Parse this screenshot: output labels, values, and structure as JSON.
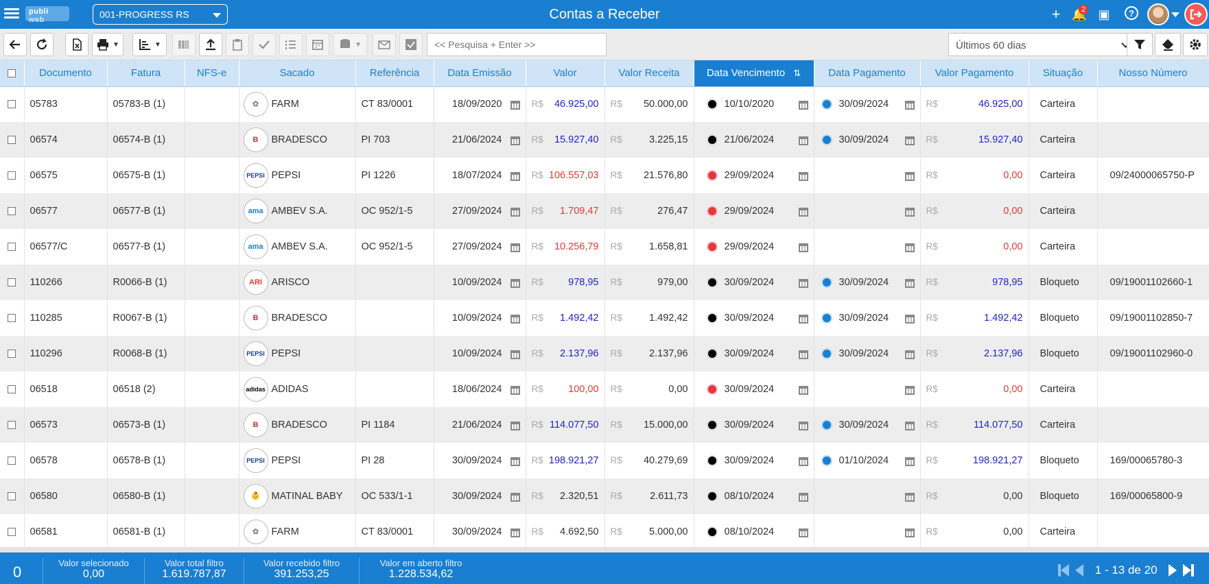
{
  "app": {
    "logo_a": "publi",
    "logo_b": "web",
    "company": "001-PROGRESS RS",
    "title": "Contas a Receber",
    "notifications": "2"
  },
  "toolbar": {
    "search_placeholder": "<< Pesquisa + Enter >>",
    "period": "Últimos 60 dias"
  },
  "columns": [
    "Documento",
    "Fatura",
    "NFS-e",
    "Sacado",
    "Referência",
    "Data Emissão",
    "Valor",
    "Valor Receita",
    "Data Vencimento",
    "Data Pagamento",
    "Valor Pagamento",
    "Situação",
    "Nosso Número"
  ],
  "currency": "R$",
  "rows": [
    {
      "doc": "05783",
      "fatura": "05783-B (1)",
      "nfse": "",
      "sacado": "FARM",
      "logo": "farm",
      "ref": "CT 83/0001",
      "emissao": "18/09/2020",
      "valor": "46.925,00",
      "valor_color": "blue",
      "receita": "50.000,00",
      "venc_status": "black",
      "venc": "10/10/2020",
      "pag_status": "blue",
      "pag": "30/09/2024",
      "valor_pag": "46.925,00",
      "pag_color": "blue",
      "situacao": "Carteira",
      "nosso": ""
    },
    {
      "doc": "06574",
      "fatura": "06574-B (1)",
      "nfse": "",
      "sacado": "BRADESCO",
      "logo": "bradesco",
      "ref": "PI 703",
      "emissao": "21/06/2024",
      "valor": "15.927,40",
      "valor_color": "blue",
      "receita": "3.225,15",
      "venc_status": "black",
      "venc": "21/06/2024",
      "pag_status": "blue",
      "pag": "30/09/2024",
      "valor_pag": "15.927,40",
      "pag_color": "blue",
      "situacao": "Carteira",
      "nosso": ""
    },
    {
      "doc": "06575",
      "fatura": "06575-B (1)",
      "nfse": "",
      "sacado": "PEPSI",
      "logo": "pepsi",
      "ref": "PI 1226",
      "emissao": "18/07/2024",
      "valor": "106.557,03",
      "valor_color": "red",
      "receita": "21.576,80",
      "venc_status": "red",
      "venc": "29/09/2024",
      "pag_status": "",
      "pag": "",
      "valor_pag": "0,00",
      "pag_color": "red",
      "situacao": "Carteira",
      "nosso": "09/24000065750-P"
    },
    {
      "doc": "06577",
      "fatura": "06577-B (1)",
      "nfse": "",
      "sacado": "AMBEV S.A.",
      "logo": "ambev",
      "ref": "OC 952/1-5",
      "emissao": "27/09/2024",
      "valor": "1.709,47",
      "valor_color": "red",
      "receita": "276,47",
      "venc_status": "red",
      "venc": "29/09/2024",
      "pag_status": "",
      "pag": "",
      "valor_pag": "0,00",
      "pag_color": "red",
      "situacao": "Carteira",
      "nosso": ""
    },
    {
      "doc": "06577/C",
      "fatura": "06577-B (1)",
      "nfse": "",
      "sacado": "AMBEV S.A.",
      "logo": "ambev",
      "ref": "OC 952/1-5",
      "emissao": "27/09/2024",
      "valor": "10.256,79",
      "valor_color": "red",
      "receita": "1.658,81",
      "venc_status": "red",
      "venc": "29/09/2024",
      "pag_status": "",
      "pag": "",
      "valor_pag": "0,00",
      "pag_color": "red",
      "situacao": "Carteira",
      "nosso": ""
    },
    {
      "doc": "110266",
      "fatura": "R0066-B (1)",
      "nfse": "",
      "sacado": "ARISCO",
      "logo": "arisco",
      "ref": "",
      "emissao": "10/09/2024",
      "valor": "978,95",
      "valor_color": "blue",
      "receita": "979,00",
      "venc_status": "black",
      "venc": "30/09/2024",
      "pag_status": "blue",
      "pag": "30/09/2024",
      "valor_pag": "978,95",
      "pag_color": "blue",
      "situacao": "Bloqueto",
      "nosso": "09/19001102660-1"
    },
    {
      "doc": "110285",
      "fatura": "R0067-B (1)",
      "nfse": "",
      "sacado": "BRADESCO",
      "logo": "bradesco",
      "ref": "",
      "emissao": "10/09/2024",
      "valor": "1.492,42",
      "valor_color": "blue",
      "receita": "1.492,42",
      "venc_status": "black",
      "venc": "30/09/2024",
      "pag_status": "blue",
      "pag": "30/09/2024",
      "valor_pag": "1.492,42",
      "pag_color": "blue",
      "situacao": "Bloqueto",
      "nosso": "09/19001102850-7"
    },
    {
      "doc": "110296",
      "fatura": "R0068-B (1)",
      "nfse": "",
      "sacado": "PEPSI",
      "logo": "pepsi",
      "ref": "",
      "emissao": "10/09/2024",
      "valor": "2.137,96",
      "valor_color": "blue",
      "receita": "2.137,96",
      "venc_status": "black",
      "venc": "30/09/2024",
      "pag_status": "blue",
      "pag": "30/09/2024",
      "valor_pag": "2.137,96",
      "pag_color": "blue",
      "situacao": "Bloqueto",
      "nosso": "09/19001102960-0"
    },
    {
      "doc": "06518",
      "fatura": "06518 (2)",
      "nfse": "",
      "sacado": "ADIDAS",
      "logo": "adidas",
      "ref": "",
      "emissao": "18/06/2024",
      "valor": "100,00",
      "valor_color": "red",
      "receita": "0,00",
      "venc_status": "red",
      "venc": "30/09/2024",
      "pag_status": "",
      "pag": "",
      "valor_pag": "0,00",
      "pag_color": "red",
      "situacao": "Carteira",
      "nosso": ""
    },
    {
      "doc": "06573",
      "fatura": "06573-B (1)",
      "nfse": "",
      "sacado": "BRADESCO",
      "logo": "bradesco",
      "ref": "PI 1184",
      "emissao": "21/06/2024",
      "valor": "114.077,50",
      "valor_color": "blue",
      "receita": "15.000,00",
      "venc_status": "black",
      "venc": "30/09/2024",
      "pag_status": "blue",
      "pag": "30/09/2024",
      "valor_pag": "114.077,50",
      "pag_color": "blue",
      "situacao": "Carteira",
      "nosso": ""
    },
    {
      "doc": "06578",
      "fatura": "06578-B (1)",
      "nfse": "",
      "sacado": "PEPSI",
      "logo": "pepsi",
      "ref": "PI 28",
      "emissao": "30/09/2024",
      "valor": "198.921,27",
      "valor_color": "blue",
      "receita": "40.279,69",
      "venc_status": "black",
      "venc": "30/09/2024",
      "pag_status": "blue",
      "pag": "01/10/2024",
      "valor_pag": "198.921,27",
      "pag_color": "blue",
      "situacao": "Bloqueto",
      "nosso": "169/00065780-3"
    },
    {
      "doc": "06580",
      "fatura": "06580-B (1)",
      "nfse": "",
      "sacado": "MATINAL BABY",
      "logo": "baby",
      "ref": "OC 533/1-1",
      "emissao": "30/09/2024",
      "valor": "2.320,51",
      "valor_color": "black",
      "receita": "2.611,73",
      "venc_status": "black",
      "venc": "08/10/2024",
      "pag_status": "",
      "pag": "",
      "valor_pag": "0,00",
      "pag_color": "black",
      "situacao": "Bloqueto",
      "nosso": "169/00065800-9"
    },
    {
      "doc": "06581",
      "fatura": "06581-B (1)",
      "nfse": "",
      "sacado": "FARM",
      "logo": "farm",
      "ref": "CT 83/0001",
      "emissao": "30/09/2024",
      "valor": "4.692,50",
      "valor_color": "black",
      "receita": "5.000,00",
      "venc_status": "black",
      "venc": "08/10/2024",
      "pag_status": "",
      "pag": "",
      "valor_pag": "0,00",
      "pag_color": "black",
      "situacao": "Carteira",
      "nosso": ""
    }
  ],
  "logos": {
    "farm": {
      "text": "✿",
      "color": "#888"
    },
    "bradesco": {
      "text": "B",
      "color": "#d32f2f"
    },
    "pepsi": {
      "text": "PEPSI",
      "color": "#1c3d8a"
    },
    "ambev": {
      "text": "ama",
      "color": "#1a7fd1"
    },
    "arisco": {
      "text": "ARI",
      "color": "#e53935"
    },
    "adidas": {
      "text": "adidas",
      "color": "#000"
    },
    "baby": {
      "text": "👶",
      "color": "#777"
    }
  },
  "footer": {
    "count": "0",
    "selected_label": "Valor selecionado",
    "selected_value": "0,00",
    "total_label": "Valor total filtro",
    "total_value": "1.619.787,87",
    "received_label": "Valor recebido filtro",
    "received_value": "391.253,25",
    "open_label": "Valor em aberto filtro",
    "open_value": "1.228.534,62",
    "pagination": "1 - 13 de 20"
  },
  "colors": {
    "primary": "#1a7fd1",
    "header_bg": "#cfe4f7",
    "blue_value": "#2222cc",
    "red_value": "#e53935"
  }
}
